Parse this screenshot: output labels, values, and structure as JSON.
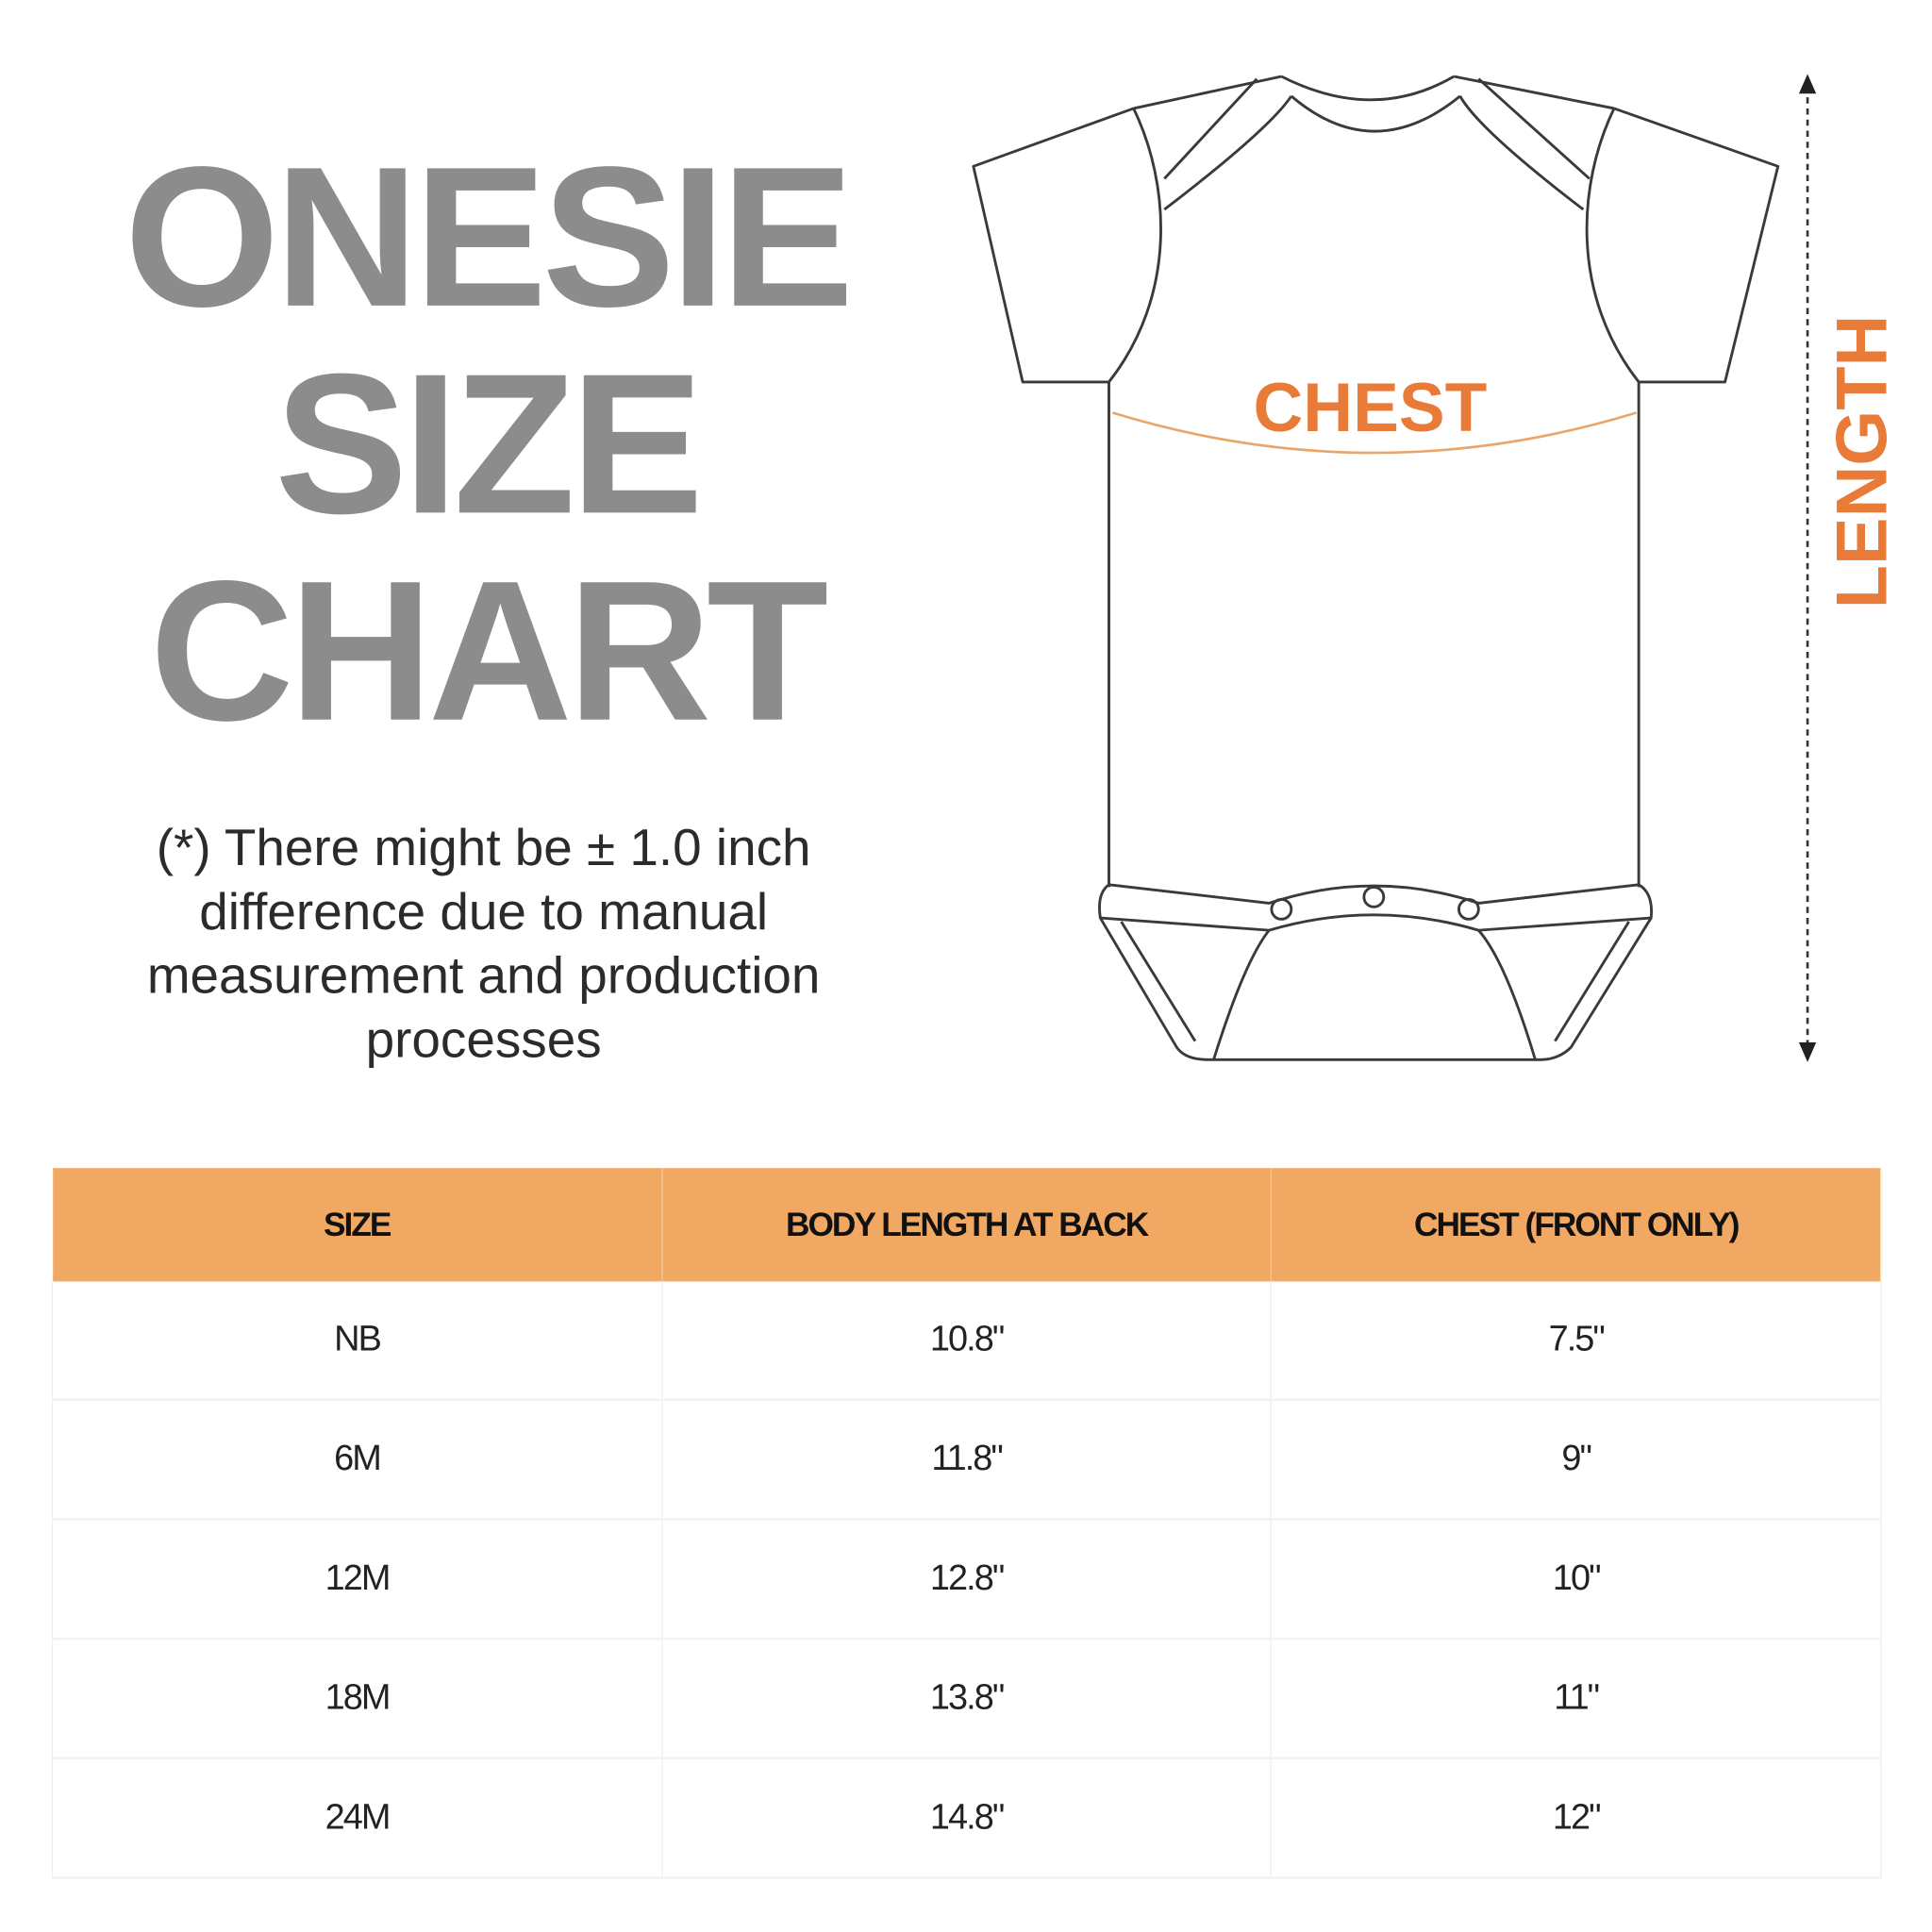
{
  "title": {
    "line1": "ONESIE",
    "line2": "SIZE",
    "line3": "CHART"
  },
  "note": "(*) There might be ± 1.0 inch difference due to manual measurement and production processes",
  "diagram": {
    "chest_label": "CHEST",
    "length_label": "LENGTH"
  },
  "colors": {
    "title": "#8c8c8c",
    "accent": "#e87b38",
    "header_bg": "#f0a862"
  },
  "table": {
    "headers": [
      "SIZE",
      "BODY LENGTH AT BACK",
      "CHEST (FRONT ONLY)"
    ],
    "rows": [
      [
        "NB",
        "10.8\"",
        "7.5\""
      ],
      [
        "6M",
        "11.8\"",
        "9\""
      ],
      [
        "12M",
        "12.8\"",
        "10\""
      ],
      [
        "18M",
        "13.8\"",
        "11\""
      ],
      [
        "24M",
        "14.8\"",
        "12\""
      ]
    ]
  }
}
